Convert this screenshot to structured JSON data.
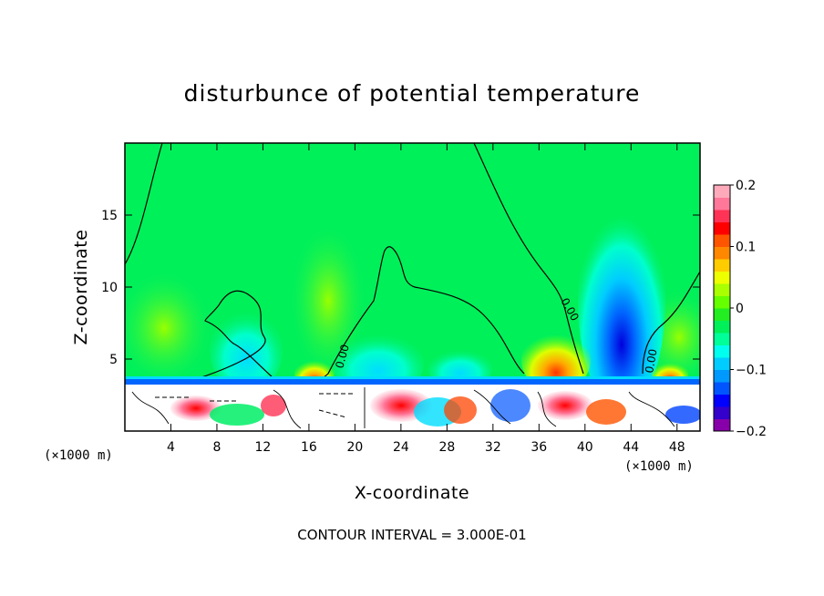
{
  "chart_data": {
    "type": "heatmap",
    "title": "disturbunce of potential temperature",
    "xlabel": "X-coordinate",
    "ylabel": "Z-coordinate",
    "x_unit": "(×1000 m)",
    "y_unit": "(×1000 m)",
    "xlim": [
      0,
      50
    ],
    "ylim": [
      0,
      20
    ],
    "x_ticks": [
      4,
      8,
      12,
      16,
      20,
      24,
      28,
      32,
      36,
      40,
      44,
      48
    ],
    "y_ticks": [
      5,
      10,
      15
    ],
    "colorbar": {
      "vmin": -0.2,
      "vmax": 0.2,
      "ticks": [
        {
          "value": 0.2,
          "label": "0.2"
        },
        {
          "value": 0.1,
          "label": "0.1"
        },
        {
          "value": 0.0,
          "label": "0"
        },
        {
          "value": -0.1,
          "label": "−0.1"
        },
        {
          "value": -0.2,
          "label": "−0.2"
        }
      ],
      "colors": [
        "#8800aa",
        "#3300cc",
        "#0000ff",
        "#0055ff",
        "#0099ff",
        "#00ccff",
        "#00ffee",
        "#00ff99",
        "#00f05a",
        "#22ee22",
        "#66ff00",
        "#aaff00",
        "#eeff00",
        "#ffcc00",
        "#ff8800",
        "#ff5500",
        "#ff0000",
        "#ff3355",
        "#ff7799",
        "#ffaabb"
      ]
    },
    "contour_interval_label": "CONTOUR INTERVAL = 3.000E-01",
    "zero_contour_label": "0.00"
  }
}
